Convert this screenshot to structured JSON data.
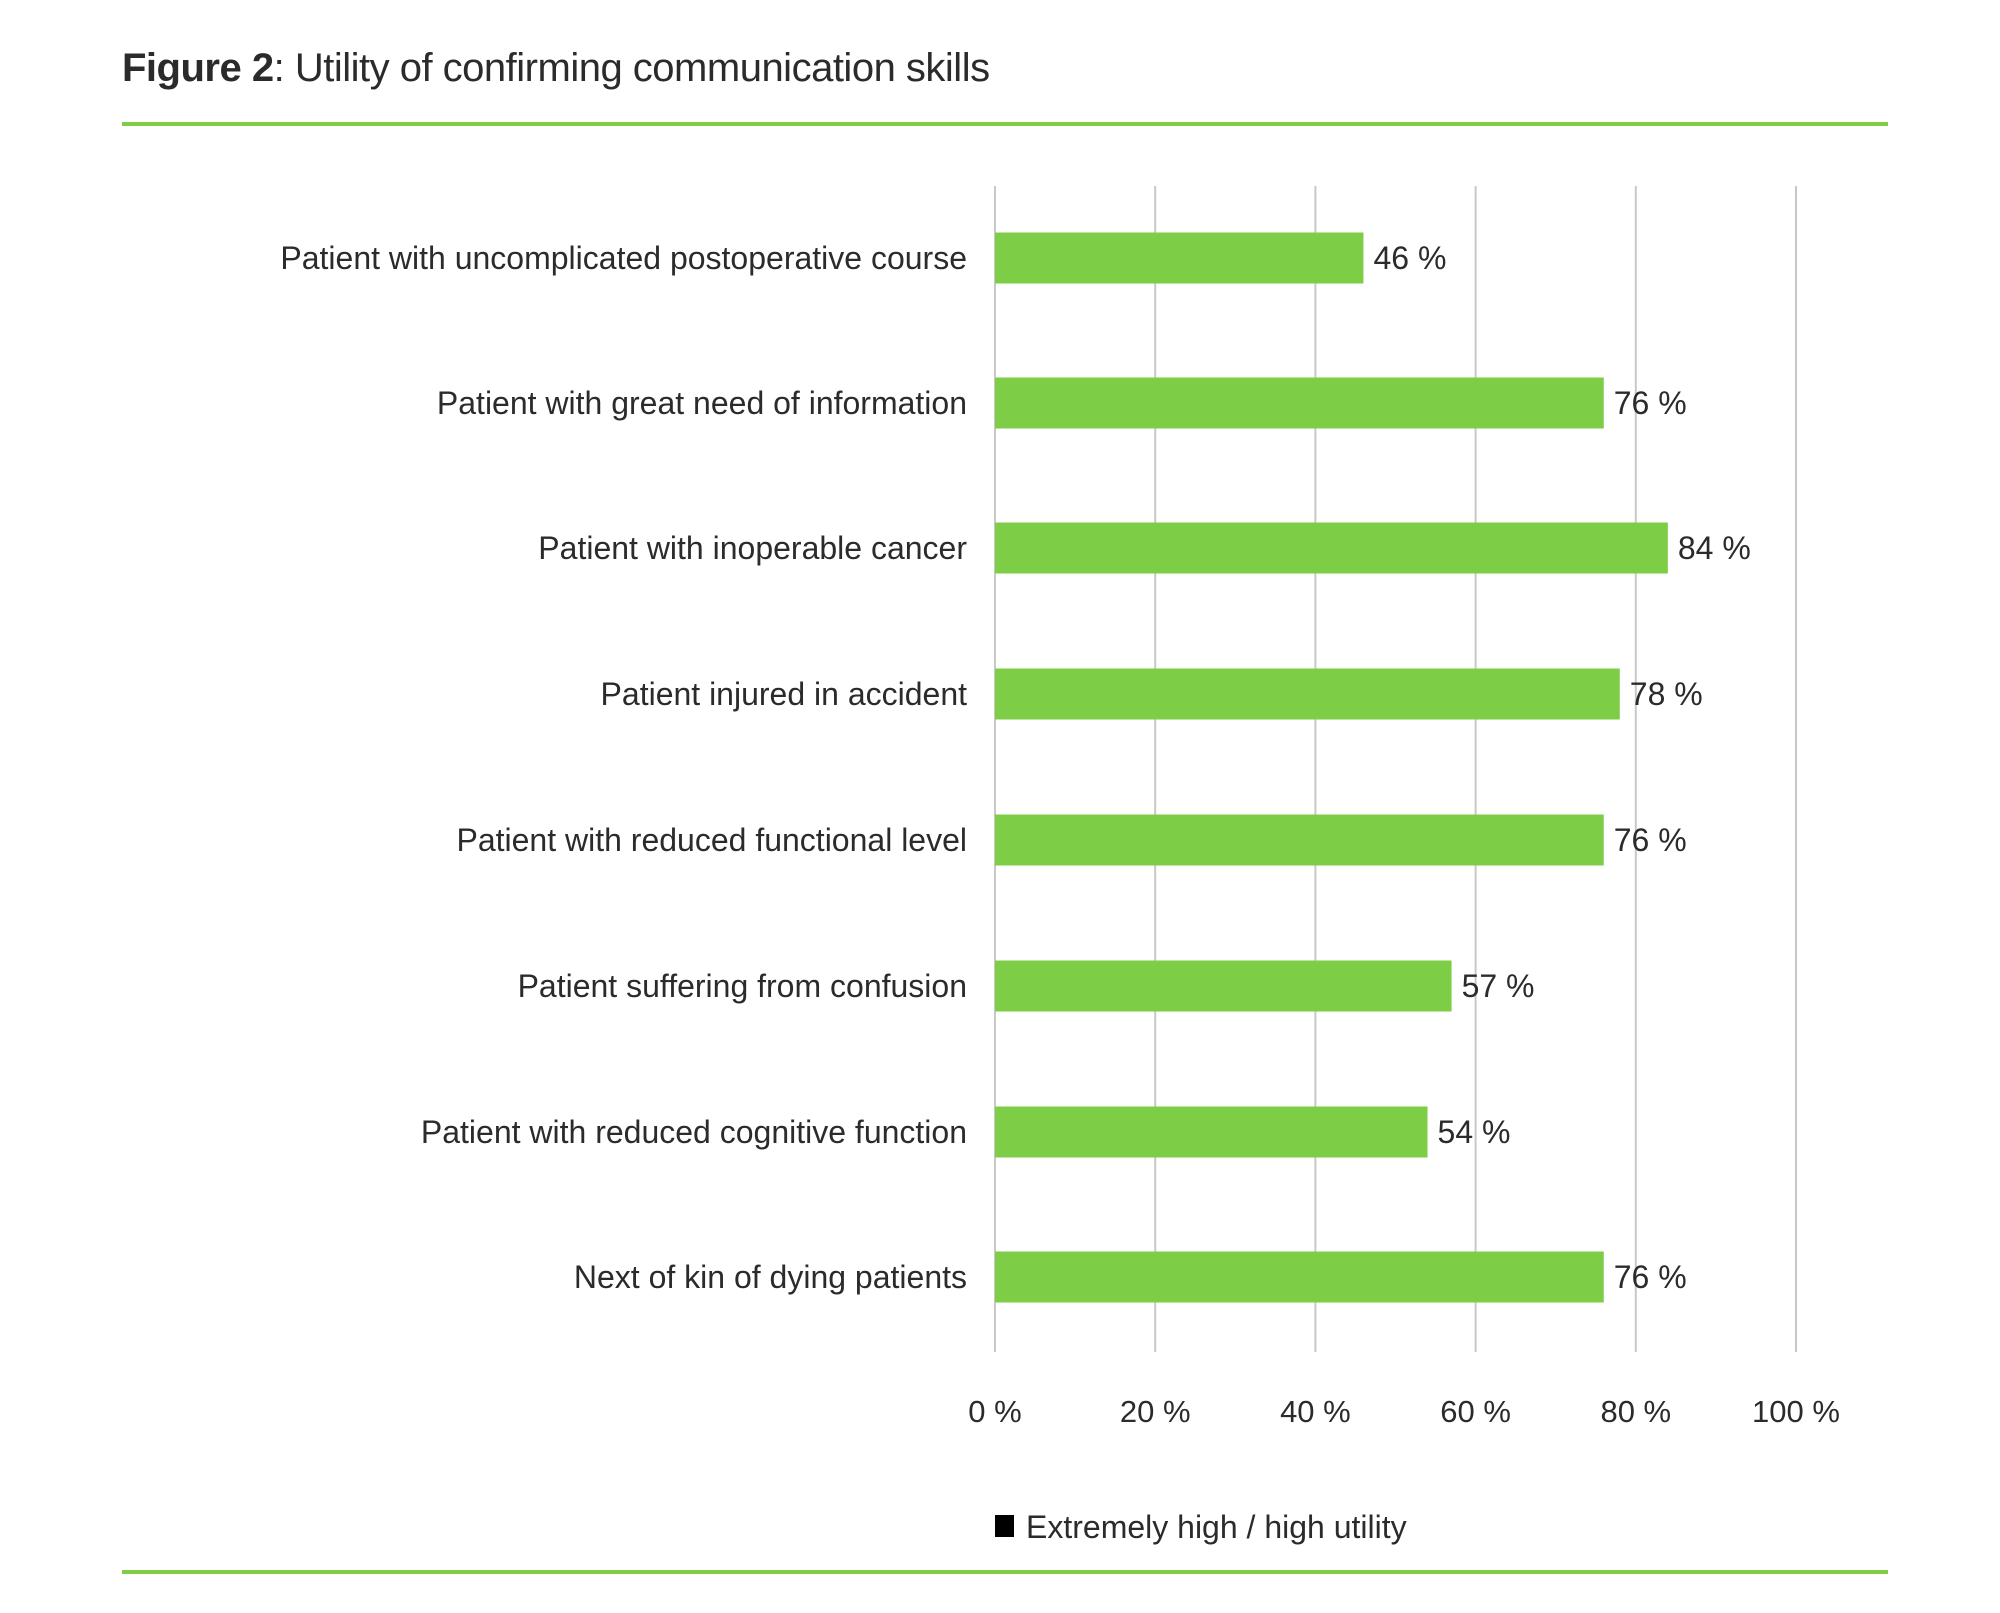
{
  "figure": {
    "label": "Figure 2",
    "title": ": Utility of confirming communication skills"
  },
  "colors": {
    "bar": "#7ecd46",
    "rule": "#7ecd46",
    "grid": "#c8c8c8",
    "legend_marker": "#000000"
  },
  "chart_data": {
    "type": "bar",
    "orientation": "horizontal",
    "categories": [
      "Patient with uncomplicated postoperative course",
      "Patient with great need of information",
      "Patient with inoperable cancer",
      "Patient injured in accident",
      "Patient with reduced functional level",
      "Patient suffering from confusion",
      "Patient with reduced cognitive function",
      "Next of kin of dying patients"
    ],
    "series": [
      {
        "name": "Extremely high / high utility",
        "values": [
          46,
          76,
          84,
          78,
          76,
          57,
          54,
          76
        ]
      }
    ],
    "data_labels": [
      "46 %",
      "76 %",
      "84 %",
      "78 %",
      "76 %",
      "57 %",
      "54 %",
      "76 %"
    ],
    "xlim": [
      0,
      100
    ],
    "xticks": [
      0,
      20,
      40,
      60,
      80,
      100
    ],
    "xtick_labels": [
      "0 %",
      "20 %",
      "40 %",
      "60 %",
      "80 %",
      "100 %"
    ],
    "grid": true,
    "legend": {
      "placement": "bottom",
      "label": "Extremely high / high utility"
    }
  }
}
